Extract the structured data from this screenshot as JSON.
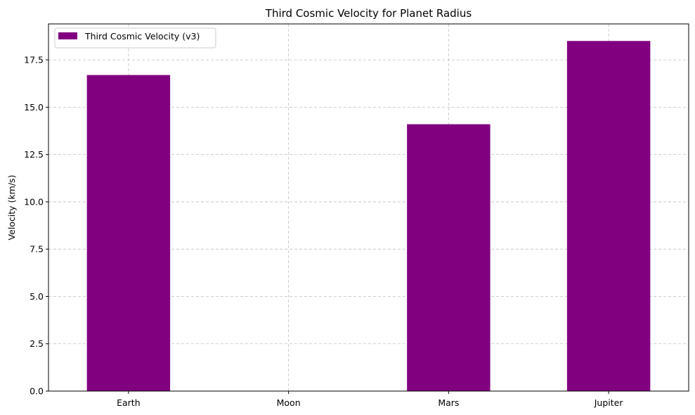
{
  "chart_data": {
    "type": "bar",
    "title": "Third Cosmic Velocity for Planet Radius",
    "xlabel": "",
    "ylabel": "Velocity (km/s)",
    "categories": [
      "Earth",
      "Moon",
      "Mars",
      "Jupiter"
    ],
    "series": [
      {
        "name": "Third Cosmic Velocity (v3)",
        "values": [
          16.7,
          0,
          14.1,
          18.5
        ],
        "color": "#800080"
      }
    ],
    "ylim": [
      0,
      19.4
    ],
    "yticks": [
      "0.0",
      "2.5",
      "5.0",
      "7.5",
      "10.0",
      "12.5",
      "15.0",
      "17.5"
    ],
    "grid": true,
    "legend_position": "top-left"
  }
}
